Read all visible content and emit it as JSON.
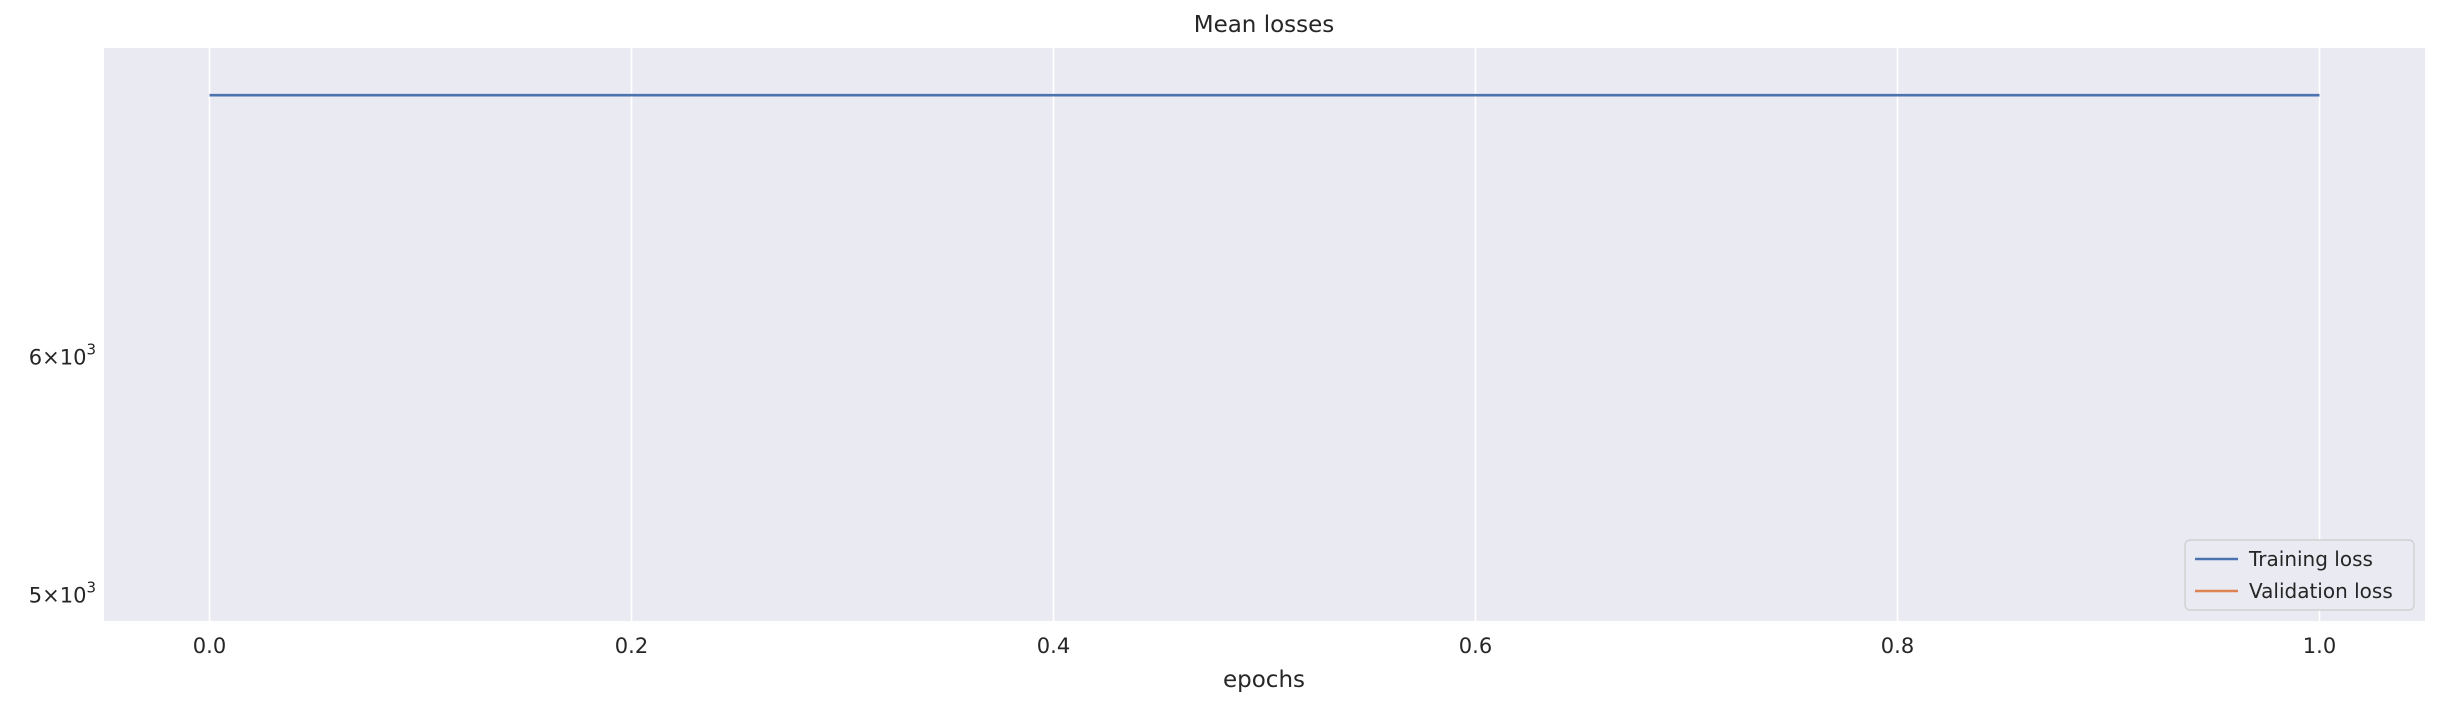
{
  "chart_data": {
    "type": "line",
    "title": "Mean losses",
    "xlabel": "epochs",
    "ylabel": "",
    "xlim": [
      -0.05,
      1.05
    ],
    "ylim": [
      4900,
      7600
    ],
    "yscale": "log",
    "grid": true,
    "legend_position": "lower-right",
    "xticks": [
      {
        "value": 0.0,
        "label": "0.0"
      },
      {
        "value": 0.2,
        "label": "0.2"
      },
      {
        "value": 0.4,
        "label": "0.4"
      },
      {
        "value": 0.6,
        "label": "0.6"
      },
      {
        "value": 0.8,
        "label": "0.8"
      },
      {
        "value": 1.0,
        "label": "1.0"
      }
    ],
    "yticks": [
      {
        "value": 5000,
        "mantissa": "5",
        "base": "10",
        "exponent": "3"
      },
      {
        "value": 6000,
        "mantissa": "6",
        "base": "10",
        "exponent": "3"
      }
    ],
    "series": [
      {
        "name": "Training loss",
        "color": "#4c72b0",
        "x": [
          0,
          1
        ],
        "y": [
          7330,
          7330
        ]
      },
      {
        "name": "Validation loss",
        "color": "#dd8452",
        "x": [],
        "y": []
      }
    ]
  },
  "colors": {
    "plot_background": "#eaeaf2",
    "grid": "#ffffff"
  }
}
